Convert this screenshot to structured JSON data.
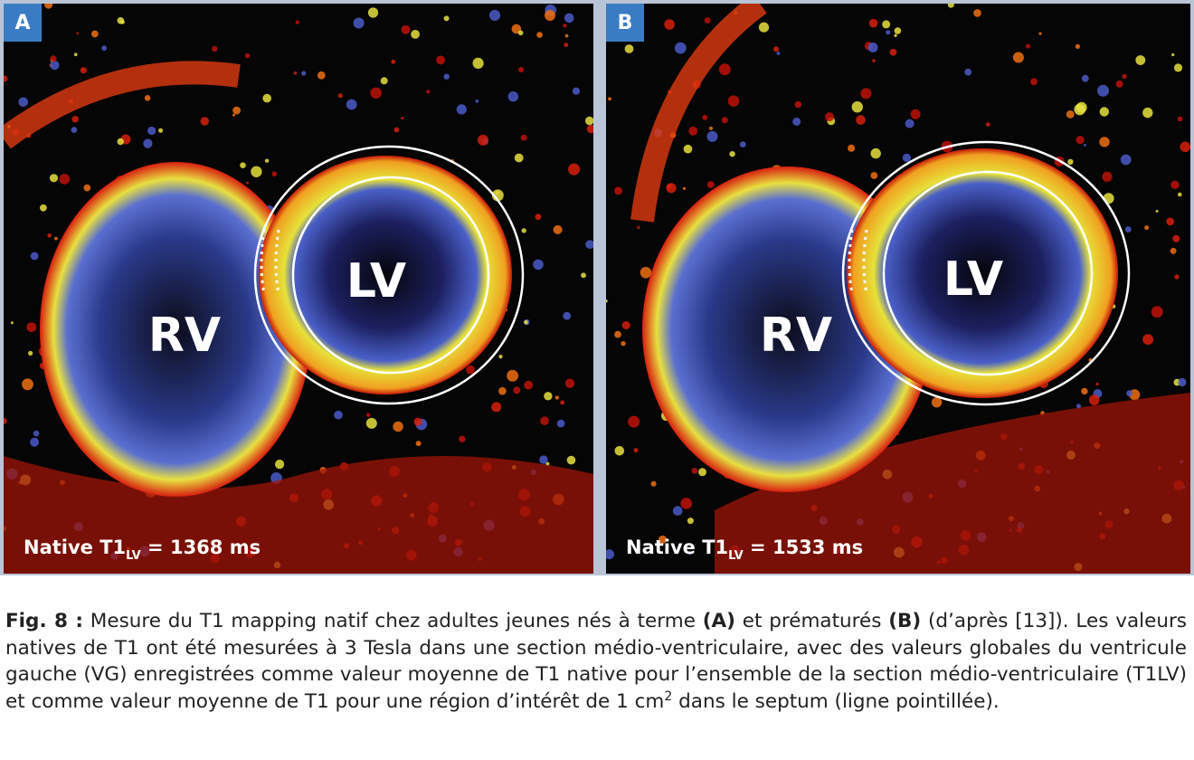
{
  "figure": {
    "panels": [
      {
        "label": "A",
        "chambers": [
          "RV",
          "LV"
        ],
        "measurement": {
          "prefix": "Native T1",
          "subscript": "LV",
          "suffix": " = 1368 ms"
        }
      },
      {
        "label": "B",
        "chambers": [
          "RV",
          "LV"
        ],
        "measurement": {
          "prefix": "Native T1",
          "subscript": "LV",
          "suffix": " = 1533 ms"
        }
      }
    ],
    "caption": [
      {
        "text": "Fig. 8 :",
        "bold": true
      },
      {
        "text": " Mesure du T1 mapping natif chez adultes jeunes nés à terme "
      },
      {
        "text": "(A)",
        "bold": true
      },
      {
        "text": " et prématurés "
      },
      {
        "text": "(B)",
        "bold": true
      },
      {
        "text": " (d’après [13]). Les valeurs natives de T1 ont été mesurées à 3 Tesla dans une section médio-ventriculaire, avec des valeurs globales du ventricule gauche (VG) enregistrées comme valeur moyenne de T1 native pour l’ensemble de la section médio-ventriculaire (T1LV) et comme valeur moyenne de T1 pour une région d’intérêt de 1 cm"
      },
      {
        "text": "2",
        "sup": true
      },
      {
        "text": " dans le septum (ligne pointillée)."
      }
    ]
  }
}
